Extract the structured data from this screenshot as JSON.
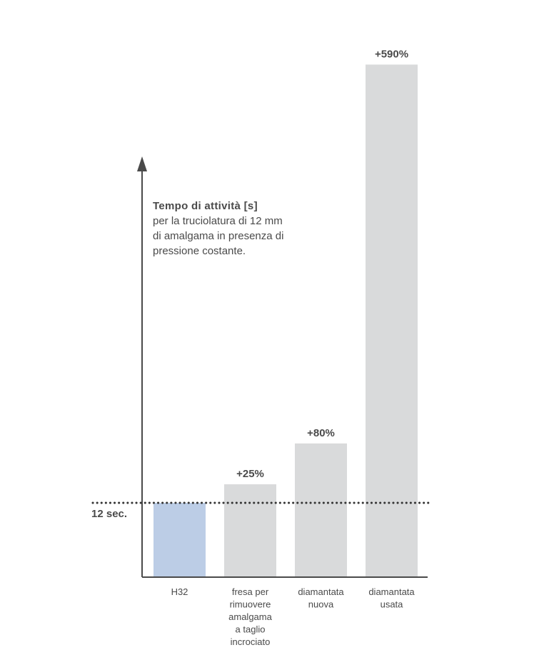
{
  "chart_data": {
    "type": "bar",
    "categories": [
      "H32",
      "fresa per\nrimuovere\namalgama\na taglio\nincrociato",
      "diamantata\nnuova",
      "diamantata\nusata"
    ],
    "values": [
      12,
      15,
      21.6,
      82.8
    ],
    "data_labels": [
      "",
      "+25%",
      "+80%",
      "+590%"
    ],
    "ylabel": "Tempo di attività [s]",
    "ylabel_sub": "per la truciolatura di 12 mm\ndi amalgama in presenza di\npressione costante.",
    "reference_line": {
      "value": 12,
      "label": "12 sec."
    },
    "grid": false,
    "colors": {
      "highlight": "#bccde6",
      "bar": "#d9dadb",
      "axis": "#4a4a4a",
      "text": "#4a4a4a",
      "reference": "#333333"
    }
  }
}
